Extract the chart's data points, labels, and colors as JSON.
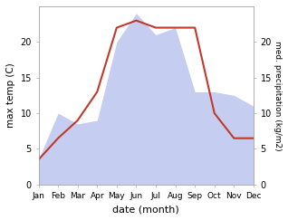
{
  "months": [
    "Jan",
    "Feb",
    "Mar",
    "Apr",
    "May",
    "Jun",
    "Jul",
    "Aug",
    "Sep",
    "Oct",
    "Nov",
    "Dec"
  ],
  "month_positions": [
    1,
    2,
    3,
    4,
    5,
    6,
    7,
    8,
    9,
    10,
    11,
    12
  ],
  "temperature": [
    3.5,
    6.5,
    9.0,
    13.0,
    22.0,
    23.0,
    22.0,
    22.0,
    22.0,
    10.0,
    6.5,
    6.5
  ],
  "precipitation": [
    3.5,
    10.0,
    8.5,
    9.0,
    20.0,
    24.0,
    21.0,
    22.0,
    13.0,
    13.0,
    12.5,
    11.0
  ],
  "temp_color": "#c0392b",
  "precip_fill_color": "#c5cdf0",
  "xlabel": "date (month)",
  "ylabel_left": "max temp (C)",
  "ylabel_right": "med. precipitation (kg/m2)",
  "ylim_left": [
    0,
    25
  ],
  "ylim_right": [
    0,
    25
  ],
  "yticks_left": [
    0,
    5,
    10,
    15,
    20
  ],
  "yticks_right": [
    0,
    5,
    10,
    15,
    20
  ],
  "bg_color": "#ffffff",
  "fig_width": 3.18,
  "fig_height": 2.43,
  "dpi": 100
}
